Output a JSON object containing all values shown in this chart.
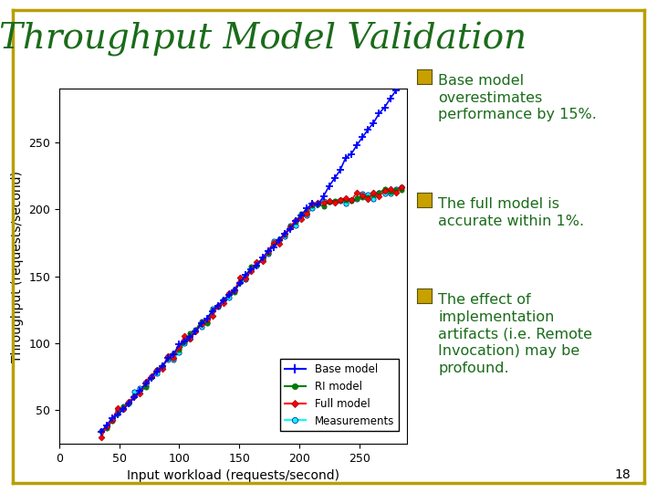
{
  "title": "Throughput Model Validation",
  "title_color": "#1a6b1a",
  "title_fontsize": 28,
  "xlabel": "Input workload (requests/second)",
  "ylabel": "Throughput (requests/second)",
  "xlim": [
    0,
    290
  ],
  "ylim": [
    25,
    290
  ],
  "xticks": [
    0,
    50,
    100,
    150,
    200,
    250
  ],
  "yticks": [
    50,
    100,
    150,
    200,
    250
  ],
  "bg_color": "#ffffff",
  "border_color": "#b8a000",
  "ann_color": "#1a6b1a",
  "ann1": "Base model\noverestimates\nperformance by 15%.",
  "ann2": "The full model is\naccurate within 1%.",
  "ann3": "The effect of\nimplementation\nartifacts (i.e. Remote\nInvocation) may be\nprofound.",
  "page_number": "18",
  "base_model_color": "blue",
  "ri_model_color": "green",
  "full_model_color": "red",
  "measurements_color": "cyan",
  "checkbox_color": "#c8a000"
}
